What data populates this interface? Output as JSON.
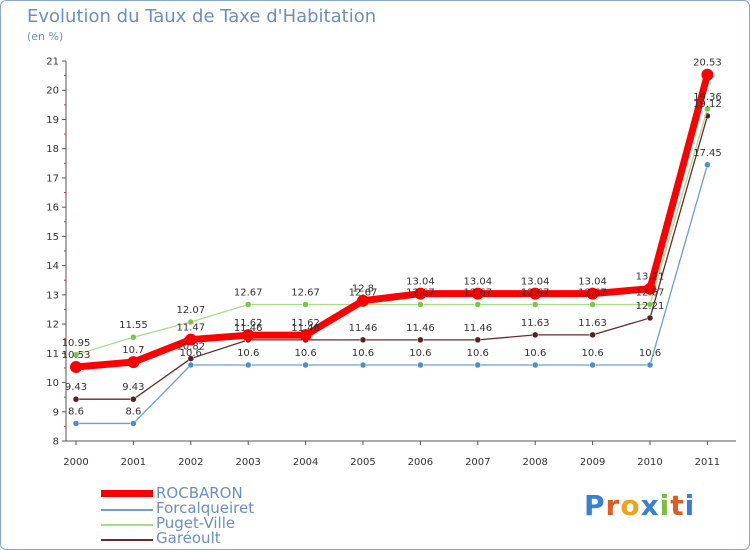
{
  "title": "Evolution du Taux de Taxe d'Habitation",
  "unit_label": "(en %)",
  "logo": {
    "text": "Proxiti",
    "letters": [
      {
        "ch": "P",
        "color": "#3a7fd4"
      },
      {
        "ch": "r",
        "color": "#e35a1c"
      },
      {
        "ch": "o",
        "color": "#f0a21b"
      },
      {
        "ch": "x",
        "color": "#3a7fd4"
      },
      {
        "ch": "i",
        "color": "#7cbf3a"
      },
      {
        "ch": "t",
        "color": "#e35a1c"
      },
      {
        "ch": "i",
        "color": "#3a7fd4"
      }
    ]
  },
  "chart_data": {
    "type": "line",
    "title": "Evolution du Taux de Taxe d'Habitation",
    "ylabel": "(en %)",
    "xlabel": "",
    "ylim": [
      8,
      21
    ],
    "yticks": [
      8,
      9,
      10,
      11,
      12,
      13,
      14,
      15,
      16,
      17,
      18,
      19,
      20,
      21
    ],
    "categories": [
      "2000",
      "2001",
      "2002",
      "2003",
      "2004",
      "2005",
      "2006",
      "2007",
      "2008",
      "2009",
      "2010",
      "2011"
    ],
    "legend_position": "bottom-left",
    "series": [
      {
        "name": "Forcalqueiret",
        "color": "#6a9fd0",
        "marker": "#4f8ec8",
        "values": [
          8.6,
          8.6,
          10.6,
          10.6,
          10.6,
          10.6,
          10.6,
          10.6,
          10.6,
          10.6,
          10.6,
          17.45
        ],
        "labels": [
          "8.6",
          "8.6",
          "10.6",
          "10.6",
          "10.6",
          "10.6",
          "10.6",
          "10.6",
          "10.6",
          "10.6",
          "10.6",
          "17.45"
        ]
      },
      {
        "name": "Garéoult",
        "color": "#6b2a2a",
        "marker": "#5a1f1f",
        "values": [
          9.43,
          9.43,
          10.82,
          11.46,
          11.46,
          11.46,
          11.46,
          11.46,
          11.63,
          11.63,
          12.21,
          19.12
        ],
        "labels": [
          "9.43",
          "9.43",
          "10.82",
          "11.46",
          "11.46",
          "11.46",
          "11.46",
          "11.46",
          "11.63",
          "11.63",
          "12.21",
          "19.12"
        ]
      },
      {
        "name": "Puget-Ville",
        "color": "#a8dc8a",
        "marker": "#7cc44e",
        "values": [
          10.95,
          11.55,
          12.07,
          12.67,
          12.67,
          12.67,
          12.67,
          12.67,
          12.67,
          12.67,
          12.67,
          19.36
        ],
        "labels": [
          "10.95",
          "11.55",
          "12.07",
          "12.67",
          "12.67",
          "12.67",
          "12.67",
          "12.67",
          "12.67",
          "12.67",
          "12.67",
          "19.36"
        ]
      },
      {
        "name": "ROCBARON",
        "color": "#ff0000",
        "marker": "#ff0000",
        "values": [
          10.53,
          10.7,
          11.47,
          11.62,
          11.62,
          12.8,
          13.04,
          13.04,
          13.04,
          13.04,
          13.21,
          20.53
        ],
        "labels": [
          "10.53",
          "10.7",
          "11.47",
          "11.62",
          "11.62",
          "12.8",
          "13.04",
          "13.04",
          "13.04",
          "13.04",
          "13.21",
          "20.53"
        ]
      }
    ]
  },
  "legend": [
    {
      "name": "ROCBARON",
      "color": "#ff0000",
      "thick": true
    },
    {
      "name": "Forcalqueiret",
      "color": "#6a9fd0",
      "thick": false
    },
    {
      "name": "Puget-Ville",
      "color": "#a8dc8a",
      "thick": false
    },
    {
      "name": "Garéoult",
      "color": "#6b2a2a",
      "thick": false
    }
  ]
}
